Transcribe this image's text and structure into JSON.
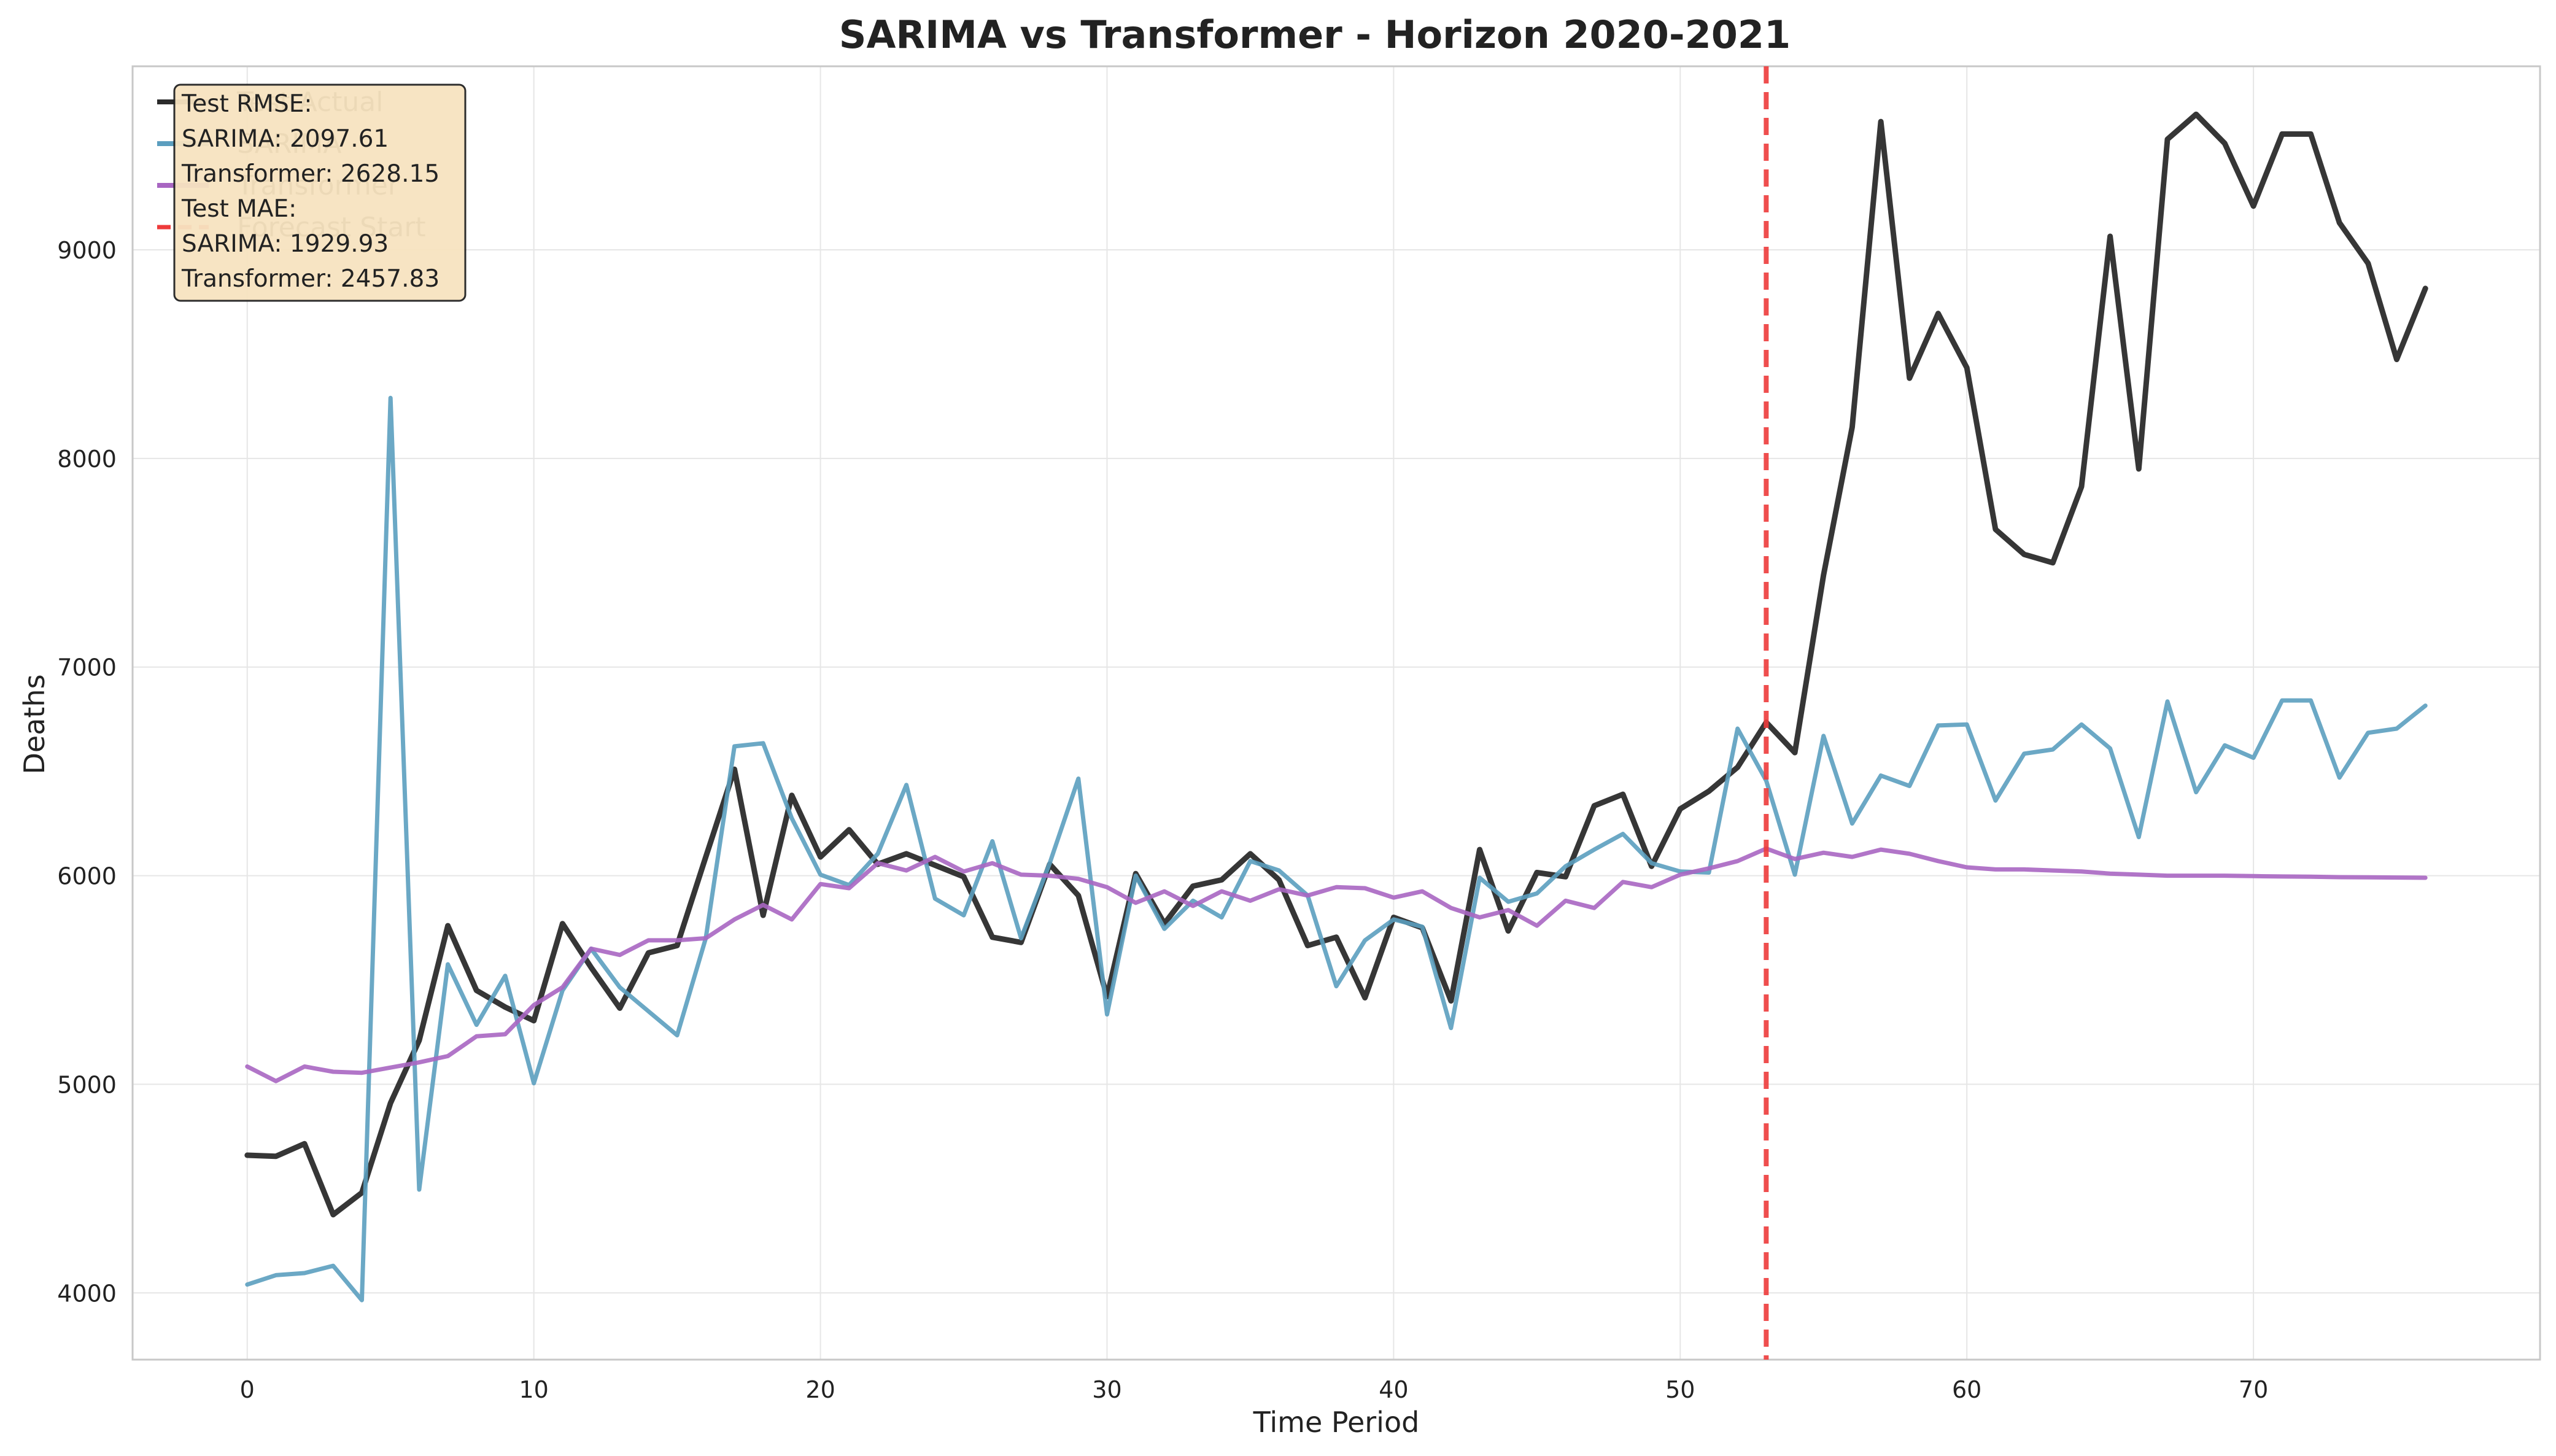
{
  "chart_data": {
    "type": "line",
    "title": "SARIMA vs Transformer - Horizon 2020-2021",
    "xlabel": "Time Period",
    "ylabel": "Deaths",
    "xlim": [
      -4,
      80
    ],
    "ylim": [
      3680,
      9880
    ],
    "xticks": [
      0,
      10,
      20,
      30,
      40,
      50,
      60,
      70
    ],
    "yticks": [
      4000,
      5000,
      6000,
      7000,
      8000,
      9000
    ],
    "grid": true,
    "legend_position": "top-left",
    "forecast_start": 53,
    "series": [
      {
        "name": "Test Actual",
        "color": "#2b2b2b",
        "style": "solid",
        "values": [
          4660,
          4655,
          4715,
          4375,
          4480,
          4910,
          5210,
          5760,
          5450,
          5370,
          5305,
          5770,
          5560,
          5365,
          5630,
          5665,
          6090,
          6510,
          5810,
          6385,
          6090,
          6220,
          6055,
          6105,
          6050,
          5995,
          5705,
          5680,
          6055,
          5905,
          5420,
          6010,
          5770,
          5950,
          5980,
          6105,
          5980,
          5665,
          5705,
          5415,
          5800,
          5750,
          5400,
          6125,
          5735,
          6015,
          5995,
          6335,
          6390,
          6045,
          6320,
          6405,
          6520,
          6735,
          6590,
          7440,
          8150,
          9615,
          8385,
          8695,
          8435,
          7660,
          7540,
          7500,
          7865,
          9065,
          7950,
          9530,
          9650,
          9510,
          9210,
          9555,
          9555,
          9130,
          8935,
          8475,
          8815
        ]
      },
      {
        "name": "SARIMA",
        "color": "#5b9ebf",
        "style": "solid",
        "values": [
          4040,
          4085,
          4095,
          4130,
          3965,
          8290,
          4495,
          5575,
          5285,
          5520,
          5005,
          5450,
          5650,
          5465,
          5350,
          5235,
          5700,
          6620,
          6635,
          6275,
          6005,
          5955,
          6105,
          6435,
          5890,
          5810,
          6165,
          5700,
          6060,
          6465,
          5335,
          6000,
          5745,
          5880,
          5800,
          6070,
          6025,
          5905,
          5470,
          5690,
          5790,
          5755,
          5270,
          5990,
          5875,
          5915,
          6045,
          6125,
          6200,
          6060,
          6020,
          6015,
          6705,
          6455,
          6005,
          6670,
          6250,
          6480,
          6430,
          6720,
          6725,
          6360,
          6585,
          6605,
          6725,
          6610,
          6185,
          6835,
          6400,
          6625,
          6565,
          6840,
          6840,
          6470,
          6685,
          6705,
          6815
        ]
      },
      {
        "name": "Transformer",
        "color": "#a866c2",
        "style": "solid",
        "values": [
          5085,
          5015,
          5085,
          5060,
          5055,
          5080,
          5105,
          5135,
          5230,
          5240,
          5380,
          5465,
          5650,
          5620,
          5690,
          5690,
          5700,
          5790,
          5860,
          5790,
          5960,
          5940,
          6060,
          6025,
          6090,
          6020,
          6060,
          6005,
          6000,
          5985,
          5945,
          5870,
          5925,
          5855,
          5925,
          5880,
          5935,
          5905,
          5945,
          5940,
          5895,
          5925,
          5845,
          5800,
          5835,
          5760,
          5880,
          5845,
          5970,
          5945,
          6005,
          6035,
          6070,
          6130,
          6080,
          6110,
          6090,
          6125,
          6105,
          6070,
          6040,
          6030,
          6030,
          6025,
          6020,
          6010,
          6005,
          6000,
          6000,
          6000,
          5998,
          5996,
          5995,
          5993,
          5992,
          5991,
          5990
        ]
      }
    ],
    "legend": [
      {
        "label": "Test Actual",
        "color": "#2b2b2b",
        "dashed": false
      },
      {
        "label": "SARIMA",
        "color": "#5b9ebf",
        "dashed": false
      },
      {
        "label": "Transformer",
        "color": "#a866c2",
        "dashed": false
      },
      {
        "label": "Forecast Start",
        "color": "#ee3b3b",
        "dashed": true
      }
    ],
    "annotation": {
      "lines": [
        "Test RMSE:",
        "SARIMA: 2097.61",
        "Transformer: 2628.15",
        "Test MAE:",
        "SARIMA: 1929.93",
        "Transformer: 2457.83"
      ],
      "background": "#f7e3c0"
    }
  }
}
